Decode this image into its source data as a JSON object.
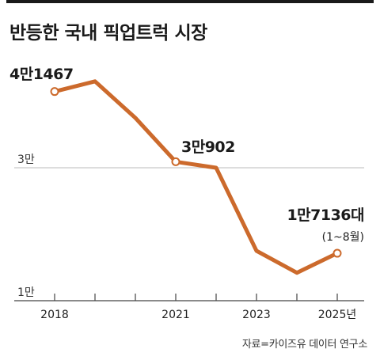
{
  "title": "반등한 국내 픽업트럭 시장",
  "source": "자료=카이즈유 데이터 연구소",
  "colors": {
    "line": "#cc6a2c",
    "axis": "#444444",
    "grid": "#bbbbbb"
  },
  "chart_data": {
    "type": "line",
    "title": "반등한 국내 픽업트럭 시장",
    "x": [
      2018,
      2019,
      2020,
      2021,
      2022,
      2023,
      2024,
      2025
    ],
    "x_tick_labels": [
      "2018",
      "",
      "",
      "2021",
      "",
      "2023",
      "",
      "2025년"
    ],
    "series": [
      {
        "values": [
          41467,
          43000,
          37500,
          30902,
          30000,
          17500,
          14200,
          17136
        ]
      }
    ],
    "y_ticks": [
      {
        "value": 30000,
        "label": "3만"
      },
      {
        "value": 10000,
        "label": "1만"
      }
    ],
    "ylim": [
      10000,
      45000
    ],
    "annotations": [
      {
        "index": 0,
        "text": "4만1467"
      },
      {
        "index": 3,
        "text": "3만902"
      },
      {
        "index": 7,
        "text": "1만7136대",
        "subtext": "(1~8월)"
      }
    ],
    "marker_indices": [
      0,
      3,
      7
    ],
    "grid": "y-major"
  }
}
